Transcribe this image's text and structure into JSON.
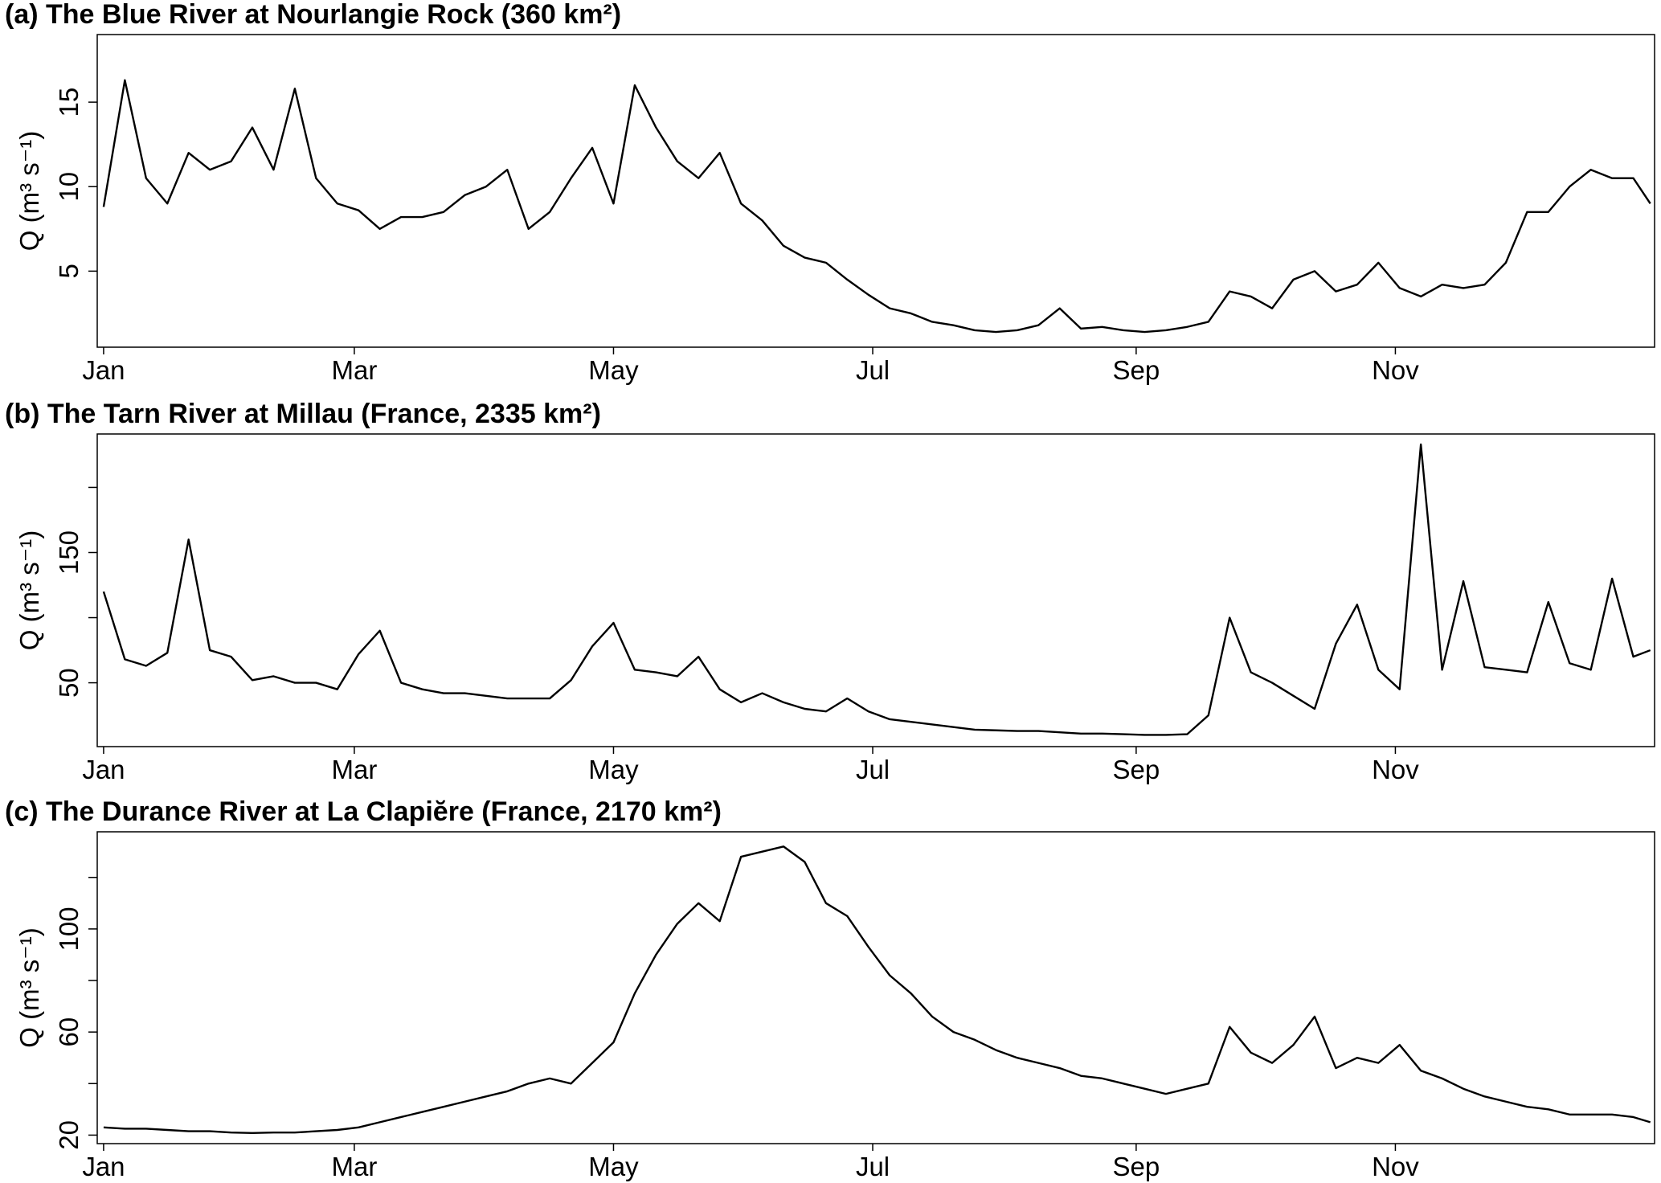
{
  "chart_data": [
    {
      "type": "line",
      "title": "(a) The Blue River at Nourlangie Rock (360 km²)",
      "y_label": "Q (m³ s⁻¹)",
      "color": "#000000",
      "x": [
        1,
        6,
        11,
        16,
        21,
        26,
        31,
        36,
        41,
        46,
        51,
        56,
        61,
        66,
        71,
        76,
        81,
        86,
        91,
        96,
        101,
        106,
        111,
        116,
        121,
        126,
        131,
        136,
        141,
        146,
        151,
        156,
        161,
        166,
        171,
        176,
        181,
        186,
        191,
        196,
        201,
        206,
        211,
        216,
        221,
        226,
        231,
        236,
        241,
        246,
        251,
        256,
        261,
        266,
        271,
        276,
        281,
        286,
        291,
        296,
        301,
        306,
        311,
        316,
        321,
        326,
        331,
        336,
        341,
        346,
        351,
        356,
        361,
        365
      ],
      "values": [
        8.8,
        16.3,
        10.5,
        9.0,
        12.0,
        11.0,
        11.5,
        13.5,
        11.0,
        15.8,
        10.5,
        9.0,
        8.6,
        7.5,
        8.2,
        8.2,
        8.5,
        9.5,
        10.0,
        11.0,
        7.5,
        8.5,
        10.5,
        12.3,
        9.0,
        16.0,
        13.5,
        11.5,
        10.5,
        12.0,
        9.0,
        8.0,
        6.5,
        5.8,
        5.5,
        4.5,
        3.6,
        2.8,
        2.5,
        2.0,
        1.8,
        1.5,
        1.4,
        1.5,
        1.8,
        2.8,
        1.6,
        1.7,
        1.5,
        1.4,
        1.5,
        1.7,
        2.0,
        3.8,
        3.5,
        2.8,
        4.5,
        5.0,
        3.8,
        4.2,
        5.5,
        4.0,
        3.5,
        4.2,
        4.0,
        4.2,
        5.5,
        8.5,
        8.5,
        10.0,
        11.0,
        10.5,
        10.5,
        9.0
      ],
      "xlim": [
        -0.5,
        366
      ],
      "xticks": [
        {
          "value": 1,
          "label": "Jan"
        },
        {
          "value": 60,
          "label": "Mar"
        },
        {
          "value": 121,
          "label": "May"
        },
        {
          "value": 182,
          "label": "Jul"
        },
        {
          "value": 244,
          "label": "Sep"
        },
        {
          "value": 305,
          "label": "Nov"
        }
      ],
      "ylim": [
        0.5,
        19
      ],
      "yticks": [
        5,
        10,
        15
      ],
      "minor_yticks": []
    },
    {
      "type": "line",
      "title": "(b) The Tarn River at Millau (France, 2335 km²)",
      "y_label": "Q (m³ s⁻¹)",
      "color": "#000000",
      "x": [
        1,
        6,
        11,
        16,
        21,
        26,
        31,
        36,
        41,
        46,
        51,
        56,
        61,
        66,
        71,
        76,
        81,
        86,
        91,
        96,
        101,
        106,
        111,
        116,
        121,
        126,
        131,
        136,
        141,
        146,
        151,
        156,
        161,
        166,
        171,
        176,
        181,
        186,
        191,
        196,
        201,
        206,
        211,
        216,
        221,
        226,
        231,
        236,
        241,
        246,
        251,
        256,
        261,
        266,
        271,
        276,
        281,
        286,
        291,
        296,
        301,
        306,
        311,
        316,
        321,
        326,
        331,
        336,
        341,
        346,
        351,
        356,
        361,
        365
      ],
      "values": [
        120,
        68,
        63,
        73,
        160,
        75,
        70,
        52,
        55,
        50,
        50,
        45,
        72,
        90,
        50,
        45,
        42,
        42,
        40,
        38,
        38,
        38,
        52,
        78,
        96,
        60,
        58,
        55,
        70,
        45,
        35,
        42,
        35,
        30,
        28,
        38,
        28,
        22,
        20,
        18,
        16,
        14,
        13.5,
        13,
        13,
        12,
        11,
        11,
        10.5,
        10,
        10,
        10.5,
        25,
        100,
        58,
        50,
        40,
        30,
        80,
        110,
        60,
        45,
        233,
        60,
        128,
        62,
        60,
        58,
        112,
        65,
        60,
        130,
        70,
        75
      ],
      "xlim": [
        -0.5,
        366
      ],
      "xticks": [
        {
          "value": 1,
          "label": "Jan"
        },
        {
          "value": 60,
          "label": "Mar"
        },
        {
          "value": 121,
          "label": "May"
        },
        {
          "value": 182,
          "label": "Jul"
        },
        {
          "value": 244,
          "label": "Sep"
        },
        {
          "value": 305,
          "label": "Nov"
        }
      ],
      "ylim": [
        1,
        241
      ],
      "yticks": [
        50,
        150
      ],
      "minor_yticks": [
        100,
        200
      ]
    },
    {
      "type": "line",
      "title": "(c) The Durance River at La Clapiĕre (France, 2170 km²)",
      "y_label": "Q (m³ s⁻¹)",
      "color": "#000000",
      "x": [
        1,
        6,
        11,
        16,
        21,
        26,
        31,
        36,
        41,
        46,
        51,
        56,
        61,
        66,
        71,
        76,
        81,
        86,
        91,
        96,
        101,
        106,
        111,
        116,
        121,
        126,
        131,
        136,
        141,
        146,
        151,
        156,
        161,
        166,
        171,
        176,
        181,
        186,
        191,
        196,
        201,
        206,
        211,
        216,
        221,
        226,
        231,
        236,
        241,
        246,
        251,
        256,
        261,
        266,
        271,
        276,
        281,
        286,
        291,
        296,
        301,
        306,
        311,
        316,
        321,
        326,
        331,
        336,
        341,
        346,
        351,
        356,
        361,
        365
      ],
      "values": [
        23,
        22.5,
        22.5,
        22,
        21.5,
        21.5,
        21,
        20.8,
        21,
        21,
        21.5,
        22,
        23,
        25,
        27,
        29,
        31,
        33,
        35,
        37,
        40,
        42,
        40,
        48,
        56,
        75,
        90,
        102,
        110,
        103,
        128,
        130,
        132,
        126,
        110,
        105,
        93,
        82,
        75,
        66,
        60,
        57,
        53,
        50,
        48,
        46,
        43,
        42,
        40,
        38,
        36,
        38,
        40,
        62,
        52,
        48,
        55,
        66,
        46,
        50,
        48,
        55,
        45,
        42,
        38,
        35,
        33,
        31,
        30,
        28,
        28,
        28,
        27,
        25
      ],
      "xlim": [
        -0.5,
        366
      ],
      "xticks": [
        {
          "value": 1,
          "label": "Jan"
        },
        {
          "value": 60,
          "label": "Mar"
        },
        {
          "value": 121,
          "label": "May"
        },
        {
          "value": 182,
          "label": "Jul"
        },
        {
          "value": 244,
          "label": "Sep"
        },
        {
          "value": 305,
          "label": "Nov"
        }
      ],
      "ylim": [
        16.7,
        137.7
      ],
      "yticks": [
        20,
        60,
        100
      ],
      "minor_yticks": [
        40,
        80,
        120
      ]
    }
  ]
}
